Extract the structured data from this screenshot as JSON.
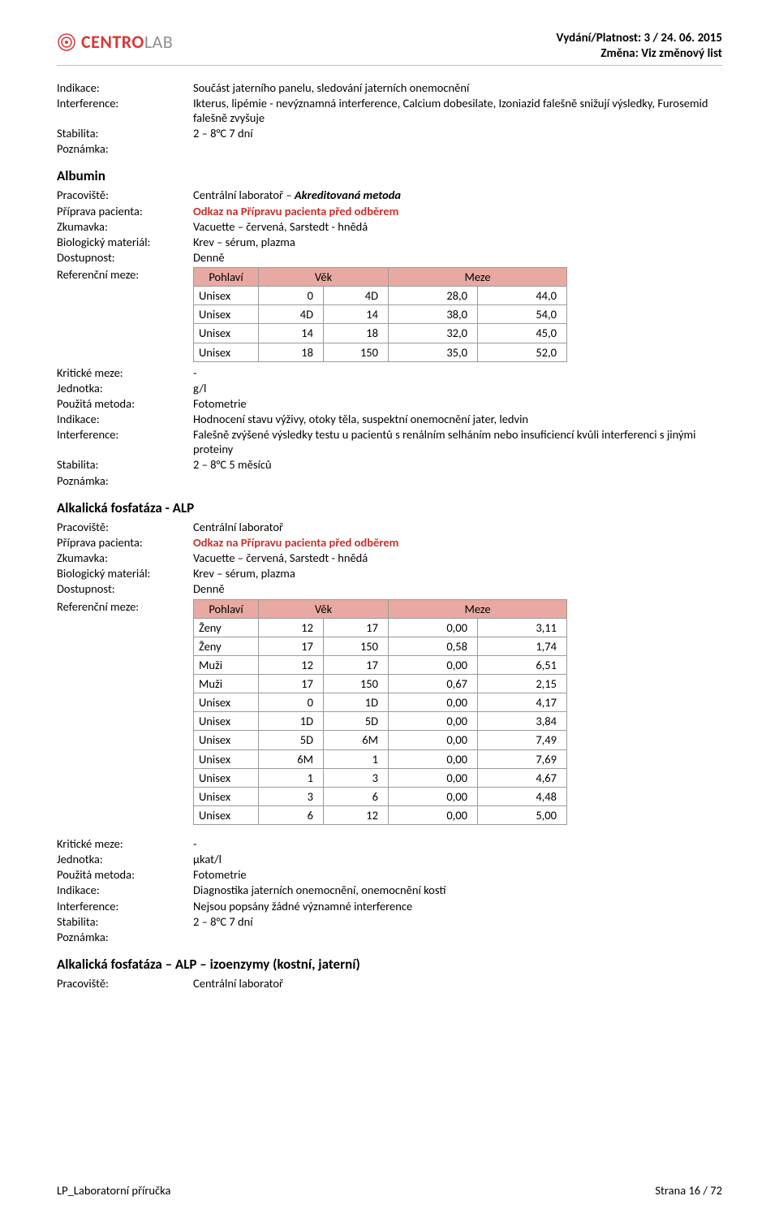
{
  "header": {
    "logo": {
      "brand_red": "CENTRO",
      "brand_grey": "LAB"
    },
    "edition_label": "Vydání/Platnost: 3 / 24. 06. 2015",
    "change_label": "Změna: Viz změnový list"
  },
  "block1": {
    "indikace_k": "Indikace:",
    "indikace_v": "Součást jaterního panelu, sledování jaterních onemocnění",
    "interference_k": "Interference:",
    "interference_v": "Ikterus, lipémie - nevýznamná interference, Calcium dobesilate, Izoniazid falešně snižují výsledky, Furosemid falešně zvyšuje",
    "stabilita_k": "Stabilita:",
    "stabilita_v": "2 – 8°C   7 dní",
    "poznamka_k": "Poznámka:"
  },
  "albumin": {
    "title": "Albumin",
    "pracoviste_k": "Pracoviště:",
    "pracoviste_v1": "Centrální laboratoř – ",
    "pracoviste_v2": "Akreditovaná metoda",
    "priprava_k": "Příprava pacienta:",
    "priprava_v": "Odkaz na Přípravu pacienta před odběrem",
    "zkumavka_k": "Zkumavka:",
    "zkumavka_v": "Vacuette – červená, Sarstedt - hnědá",
    "biomat_k": "Biologický materiál:",
    "biomat_v": "Krev – sérum, plazma",
    "dostup_k": "Dostupnost:",
    "dostup_v": "Denně",
    "ref_k": "Referenční meze:",
    "table": {
      "head": {
        "c1": "Pohlaví",
        "c2": "Věk",
        "c3": "Meze"
      },
      "rows": [
        {
          "c1": "Unisex",
          "c2": "0",
          "c3": "4D",
          "c4": "28,0",
          "c5": "44,0"
        },
        {
          "c1": "Unisex",
          "c2": "4D",
          "c3": "14",
          "c4": "38,0",
          "c5": "54,0"
        },
        {
          "c1": "Unisex",
          "c2": "14",
          "c3": "18",
          "c4": "32,0",
          "c5": "45,0"
        },
        {
          "c1": "Unisex",
          "c2": "18",
          "c3": "150",
          "c4": "35,0",
          "c5": "52,0"
        }
      ]
    },
    "kritik_k": "Kritické meze:",
    "kritik_v": "-",
    "jednotka_k": "Jednotka:",
    "jednotka_v": "g/l",
    "metoda_k": "Použitá metoda:",
    "metoda_v": "Fotometrie",
    "indikace_k": "Indikace:",
    "indikace_v": "Hodnocení stavu výživy, otoky těla, suspektní onemocnění jater, ledvin",
    "interference_k": "Interference:",
    "interference_v": "Falešně zvýšené výsledky testu u pacientů s renálním selháním nebo insuficiencí kvůli interferenci s jinými proteiny",
    "stabilita_k": "Stabilita:",
    "stabilita_v": "2 – 8°C   5 měsíců",
    "poznamka_k": "Poznámka:"
  },
  "alp": {
    "title": "Alkalická fosfatáza - ALP",
    "pracoviste_k": "Pracoviště:",
    "pracoviste_v": "Centrální laboratoř",
    "priprava_k": "Příprava pacienta:",
    "priprava_v": "Odkaz na Přípravu pacienta před odběrem",
    "zkumavka_k": "Zkumavka:",
    "zkumavka_v": "Vacuette – červená, Sarstedt - hnědá",
    "biomat_k": "Biologický materiál:",
    "biomat_v": "Krev – sérum, plazma",
    "dostup_k": "Dostupnost:",
    "dostup_v": "Denně",
    "ref_k": "Referenční meze:",
    "table": {
      "head": {
        "c1": "Pohlaví",
        "c2": "Věk",
        "c3": "Meze"
      },
      "rows": [
        {
          "c1": "Ženy",
          "c2": "12",
          "c3": "17",
          "c4": "0,00",
          "c5": "3,11"
        },
        {
          "c1": "Ženy",
          "c2": "17",
          "c3": "150",
          "c4": "0,58",
          "c5": "1,74"
        },
        {
          "c1": "Muži",
          "c2": "12",
          "c3": "17",
          "c4": "0,00",
          "c5": "6,51"
        },
        {
          "c1": "Muži",
          "c2": "17",
          "c3": "150",
          "c4": "0,67",
          "c5": "2,15"
        },
        {
          "c1": "Unisex",
          "c2": "0",
          "c3": "1D",
          "c4": "0,00",
          "c5": "4,17"
        },
        {
          "c1": "Unisex",
          "c2": "1D",
          "c3": "5D",
          "c4": "0,00",
          "c5": "3,84"
        },
        {
          "c1": "Unisex",
          "c2": "5D",
          "c3": "6M",
          "c4": "0,00",
          "c5": "7,49"
        },
        {
          "c1": "Unisex",
          "c2": "6M",
          "c3": "1",
          "c4": "0,00",
          "c5": "7,69"
        },
        {
          "c1": "Unisex",
          "c2": "1",
          "c3": "3",
          "c4": "0,00",
          "c5": "4,67"
        },
        {
          "c1": "Unisex",
          "c2": "3",
          "c3": "6",
          "c4": "0,00",
          "c5": "4,48"
        },
        {
          "c1": "Unisex",
          "c2": "6",
          "c3": "12",
          "c4": "0,00",
          "c5": "5,00"
        }
      ]
    },
    "kritik_k": "Kritické meze:",
    "kritik_v": "-",
    "jednotka_k": "Jednotka:",
    "jednotka_v": "µkat/l",
    "metoda_k": "Použitá metoda:",
    "metoda_v": "Fotometrie",
    "indikace_k": "Indikace:",
    "indikace_v": "Diagnostika jaterních onemocnění, onemocnění kostí",
    "interference_k": "Interference:",
    "interference_v": "Nejsou popsány žádné významné interference",
    "stabilita_k": "Stabilita:",
    "stabilita_v": "2 – 8°C   7 dní",
    "poznamka_k": "Poznámka:"
  },
  "alp_iso": {
    "title": "Alkalická fosfatáza – ALP – izoenzymy (kostní, jaterní)",
    "pracoviste_k": "Pracoviště:",
    "pracoviste_v": "Centrální laboratoř"
  },
  "footer": {
    "left": "LP_Laboratorní příručka",
    "right": "Strana 16 / 72"
  },
  "style": {
    "table_header_bg": "#e9a9a3",
    "table_border": "#9a9a9a",
    "red_text": "#c8302a",
    "col_widths": {
      "c1": 80,
      "c2": 80,
      "c3": 80,
      "c4": 110,
      "c5": 110
    }
  }
}
